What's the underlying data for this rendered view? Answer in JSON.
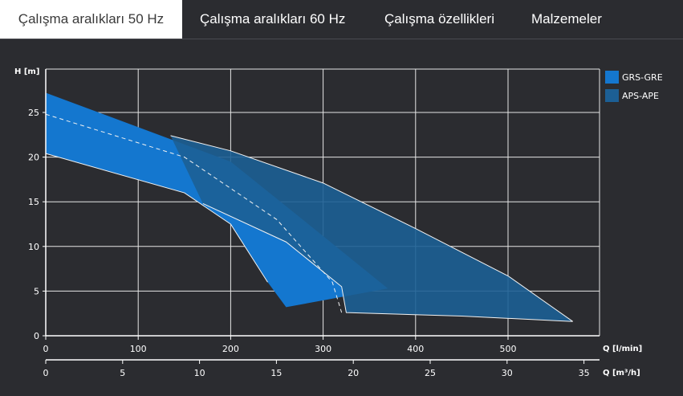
{
  "tabs": [
    {
      "label": "Çalışma aralıkları 50 Hz",
      "active": true
    },
    {
      "label": "Çalışma aralıkları 60 Hz",
      "active": false
    },
    {
      "label": "Çalışma özellikleri",
      "active": false
    },
    {
      "label": "Malzemeler",
      "active": false
    }
  ],
  "chart_data": {
    "type": "area",
    "ylabel": "H [m]",
    "xlabel": "Q [l/min]",
    "x2label": "Q [m³/h]",
    "xlim": [
      0,
      600
    ],
    "ylim": [
      0,
      30
    ],
    "x_ticks": [
      "0",
      "100",
      "200",
      "300",
      "400",
      "500"
    ],
    "x2_ticks": [
      "0",
      "5",
      "10",
      "15",
      "20",
      "25",
      "30",
      "35"
    ],
    "y_ticks": [
      "0",
      "5",
      "10",
      "15",
      "20",
      "25"
    ],
    "grid": true,
    "legend_position": "top-right",
    "series": [
      {
        "name": "GRS-GRE",
        "color": "#1477cf",
        "upper": [
          [
            0,
            27.2
          ],
          [
            200,
            19.5
          ],
          [
            290,
            12.0
          ],
          [
            370,
            5.3
          ]
        ],
        "lower": [
          [
            0,
            20.4
          ],
          [
            150,
            16.0
          ],
          [
            200,
            12.5
          ],
          [
            240,
            6.0
          ],
          [
            260,
            3.2
          ],
          [
            370,
            5.3
          ]
        ],
        "dashed": [
          [
            0,
            24.8
          ],
          [
            150,
            20.0
          ],
          [
            250,
            13.0
          ],
          [
            310,
            6.0
          ],
          [
            320,
            2.6
          ]
        ]
      },
      {
        "name": "APS-APE",
        "color": "#1c5f95",
        "upper": [
          [
            135,
            22.4
          ],
          [
            200,
            20.7
          ],
          [
            300,
            17.1
          ],
          [
            400,
            12.0
          ],
          [
            500,
            6.7
          ],
          [
            570,
            1.6
          ]
        ],
        "lower": [
          [
            170,
            14.8
          ],
          [
            260,
            10.5
          ],
          [
            320,
            5.5
          ],
          [
            325,
            2.6
          ],
          [
            450,
            2.2
          ],
          [
            570,
            1.6
          ]
        ]
      }
    ]
  }
}
